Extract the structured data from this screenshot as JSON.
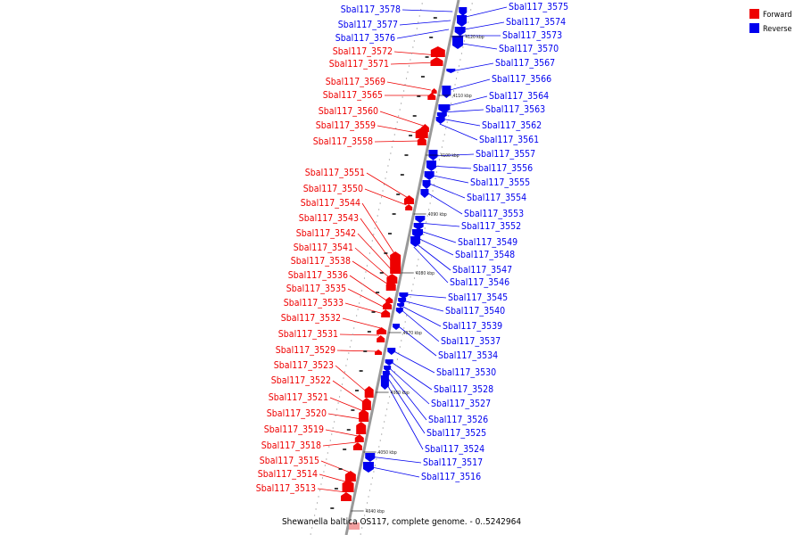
{
  "caption": "Shewanella baltica OS117, complete genome. - 0..5242964",
  "legend": [
    {
      "label": "Forward",
      "color": "#ee0000"
    },
    {
      "label": "Reverse",
      "color": "#0000ee"
    }
  ],
  "colors": {
    "forward": "#ee0000",
    "reverse": "#0000ee",
    "axis": "#999999"
  },
  "ticks": [
    "4120 kbp",
    "4110 kbp",
    "4100 kbp",
    "4090 kbp",
    "4080 kbp",
    "4070 kbp",
    "4060 kbp",
    "4050 kbp",
    "4040 kbp"
  ],
  "forward_genes": [
    "Sbal117_3572",
    "Sbal117_3571",
    "Sbal117_3569",
    "Sbal117_3565",
    "Sbal117_3560",
    "Sbal117_3559",
    "Sbal117_3558",
    "Sbal117_3551",
    "Sbal117_3550",
    "Sbal117_3544",
    "Sbal117_3543",
    "Sbal117_3542",
    "Sbal117_3541",
    "Sbal117_3538",
    "Sbal117_3536",
    "Sbal117_3535",
    "Sbal117_3533",
    "Sbal117_3532",
    "Sbal117_3531",
    "Sbal117_3529",
    "Sbal117_3523",
    "Sbal117_3522",
    "Sbal117_3521",
    "Sbal117_3520",
    "Sbal117_3519",
    "Sbal117_3518",
    "Sbal117_3515",
    "Sbal117_3514",
    "Sbal117_3513"
  ],
  "reverse_genes": [
    "Sbal117_3575",
    "Sbal117_3574",
    "Sbal117_3573",
    "Sbal117_3570",
    "Sbal117_3567",
    "Sbal117_3566",
    "Sbal117_3564",
    "Sbal117_3563",
    "Sbal117_3562",
    "Sbal117_3561",
    "Sbal117_3557",
    "Sbal117_3556",
    "Sbal117_3555",
    "Sbal117_3554",
    "Sbal117_3553",
    "Sbal117_3552",
    "Sbal117_3549",
    "Sbal117_3548",
    "Sbal117_3547",
    "Sbal117_3546",
    "Sbal117_3545",
    "Sbal117_3540",
    "Sbal117_3539",
    "Sbal117_3537",
    "Sbal117_3534",
    "Sbal117_3530",
    "Sbal117_3528",
    "Sbal117_3527",
    "Sbal117_3526",
    "Sbal117_3525",
    "Sbal117_3524",
    "Sbal117_3517",
    "Sbal117_3516"
  ],
  "upper_reverse_genes": [
    "Sbal117_3578",
    "Sbal117_3577",
    "Sbal117_3576"
  ]
}
